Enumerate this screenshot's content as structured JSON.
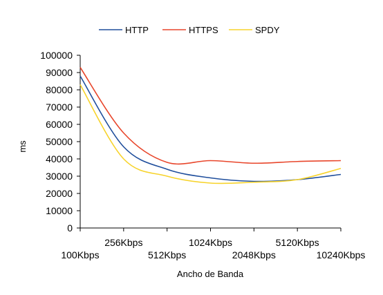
{
  "chart_data": {
    "type": "line",
    "title": "",
    "xlabel": "Ancho de Banda",
    "ylabel": "ms",
    "ylim": [
      0,
      100000
    ],
    "yticks": [
      0,
      10000,
      20000,
      30000,
      40000,
      50000,
      60000,
      70000,
      80000,
      90000,
      100000
    ],
    "categories": [
      "100Kbps",
      "256Kbps",
      "512Kbps",
      "1024Kbps",
      "2048Kbps",
      "5120Kbps",
      "10240Kbps"
    ],
    "grid": false,
    "legend_position": "top",
    "series": [
      {
        "name": "HTTP",
        "color": "#1f4e9c",
        "values": [
          88000,
          47000,
          34000,
          29000,
          27000,
          28000,
          31000
        ]
      },
      {
        "name": "HTTPS",
        "color": "#e8452a",
        "values": [
          93000,
          55000,
          38000,
          39000,
          37500,
          38500,
          39000
        ]
      },
      {
        "name": "SPDY",
        "color": "#f7d32a",
        "values": [
          83000,
          40000,
          30000,
          26000,
          26500,
          28000,
          34500
        ]
      }
    ]
  }
}
